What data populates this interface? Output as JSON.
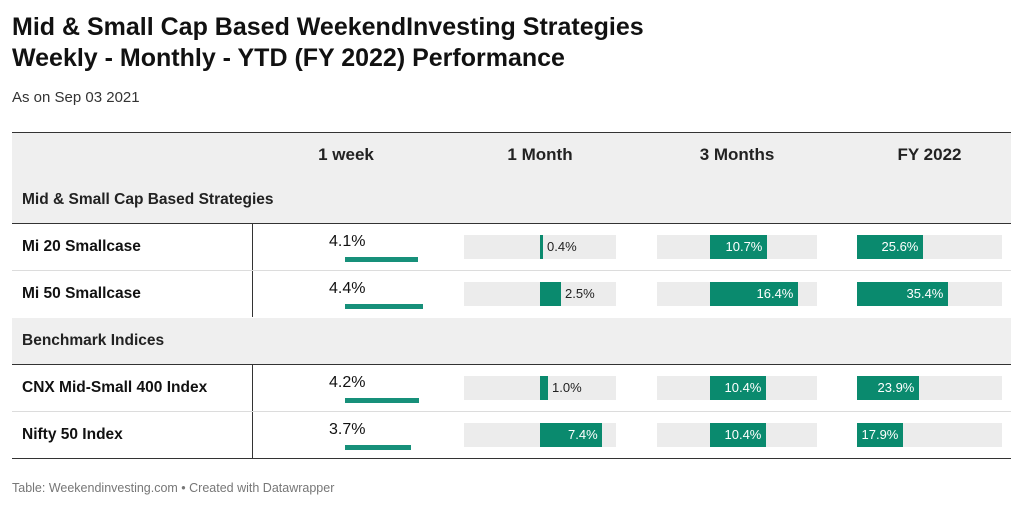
{
  "header": {
    "title_line1": "Mid & Small Cap Based WeekendInvesting Strategies",
    "title_line2": "Weekly - Monthly - YTD (FY 2022) Performance",
    "subtitle": "As on Sep 03 2021"
  },
  "footer": {
    "text": "Table: Weekendinvesting.com • Created with Datawrapper"
  },
  "colors": {
    "bar": "#0a8a6e",
    "week_bar": "#17907a",
    "track": "#ececec",
    "header_bg": "#efefef"
  },
  "chart_data": {
    "type": "table",
    "columns": [
      "",
      "1 week",
      "1 Month",
      "3 Months",
      "FY 2022"
    ],
    "groups": [
      {
        "name": "Mid & Small Cap Based Strategies",
        "rows": [
          {
            "name": "Mi 20 Smallcase",
            "week": 4.1,
            "week_label": "4.1%",
            "month": 0.4,
            "month_label": "0.4%",
            "three_months": 10.7,
            "three_months_label": "10.7%",
            "fy": 25.6,
            "fy_label": "25.6%"
          },
          {
            "name": "Mi 50 Smallcase",
            "week": 4.4,
            "week_label": "4.4%",
            "month": 2.5,
            "month_label": "2.5%",
            "three_months": 16.4,
            "three_months_label": "16.4%",
            "fy": 35.4,
            "fy_label": "35.4%"
          }
        ]
      },
      {
        "name": "Benchmark Indices",
        "rows": [
          {
            "name": "CNX Mid-Small 400 Index",
            "week": 4.2,
            "week_label": "4.2%",
            "month": 1.0,
            "month_label": "1.0%",
            "three_months": 10.4,
            "three_months_label": "10.4%",
            "fy": 23.9,
            "fy_label": "23.9%"
          },
          {
            "name": "Nifty 50 Index",
            "week": 3.7,
            "week_label": "3.7%",
            "month": 7.4,
            "month_label": "7.4%",
            "three_months": 10.4,
            "three_months_label": "10.4%",
            "fy": 17.9,
            "fy_label": "17.9%"
          }
        ]
      }
    ],
    "bar_scales": {
      "week_max": 4.4,
      "month_max": 7.4,
      "three_months_max": 16.4,
      "fy_max": 35.4
    }
  }
}
